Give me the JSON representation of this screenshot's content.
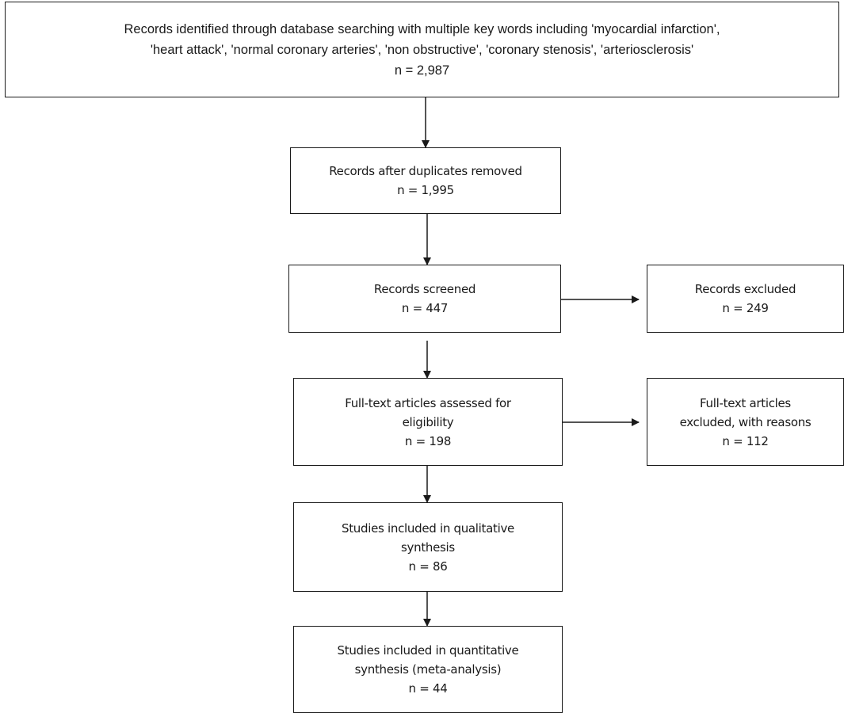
{
  "boxes": {
    "identified": {
      "line1": "Records identified through database searching with multiple key words including 'myocardial infarction',",
      "line2": "'heart attack', 'normal coronary arteries', 'non obstructive', 'coronary stenosis', 'arteriosclerosis'",
      "count": "n = 2,987"
    },
    "duplicates_removed": {
      "line1": "Records after duplicates removed",
      "count": "n = 1,995"
    },
    "screened": {
      "line1": "Records screened",
      "count": "n = 447"
    },
    "excluded": {
      "line1": "Records excluded",
      "count": "n = 249"
    },
    "fulltext_assessed": {
      "line1": "Full-text articles assessed  for",
      "line2": "eligibility",
      "count": "n = 198"
    },
    "fulltext_excluded": {
      "line1": "Full-text articles",
      "line2": "excluded, with reasons",
      "count": "n = 112"
    },
    "qualitative": {
      "line1": "Studies included in qualitative",
      "line2": "synthesis",
      "count": "n = 86"
    },
    "quantitative": {
      "line1": "Studies included in quantitative",
      "line2": "synthesis (meta-analysis)",
      "count": "n = 44"
    }
  }
}
